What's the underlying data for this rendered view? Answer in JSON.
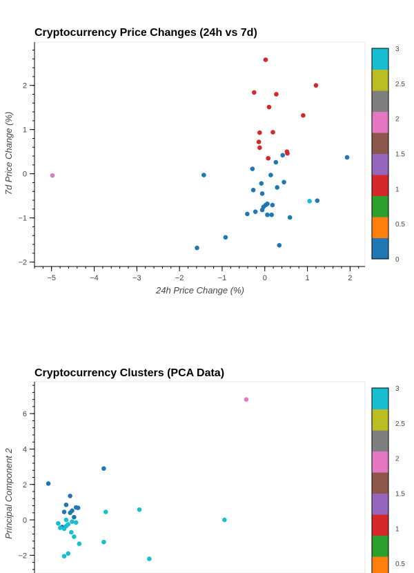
{
  "chart_data": [
    {
      "type": "scatter",
      "title": "Cryptocurrency Price Changes (24h vs 7d)",
      "xlabel": "24h Price Change (%)",
      "ylabel": "7d Price Change (%)",
      "xlim": [
        -5.4,
        2.35
      ],
      "ylim": [
        -2.1,
        2.98
      ],
      "xticks": [
        -5,
        -4,
        -3,
        -2,
        -1,
        0,
        1,
        2
      ],
      "yticks": [
        -2,
        -1,
        0,
        1,
        2
      ],
      "grid": false,
      "legend": "colorbar-right",
      "colorbar": {
        "ticks": [
          0,
          0.5,
          1,
          1.5,
          2,
          2.5,
          3
        ],
        "colors": [
          "#1f77b4",
          "#ff7f0e",
          "#2ca02c",
          "#d62728",
          "#9467bd",
          "#8c564b",
          "#e377c2",
          "#7f7f7f",
          "#bcbd22",
          "#17becf"
        ]
      },
      "points": [
        {
          "x": 0.02,
          "y": 2.58,
          "cluster": 1
        },
        {
          "x": 1.2,
          "y": 2.0,
          "cluster": 1
        },
        {
          "x": -0.25,
          "y": 1.84,
          "cluster": 1
        },
        {
          "x": 0.27,
          "y": 1.8,
          "cluster": 1
        },
        {
          "x": 0.1,
          "y": 1.51,
          "cluster": 1
        },
        {
          "x": 0.9,
          "y": 1.32,
          "cluster": 1
        },
        {
          "x": -0.12,
          "y": 0.93,
          "cluster": 1
        },
        {
          "x": 0.19,
          "y": 0.94,
          "cluster": 1
        },
        {
          "x": -0.14,
          "y": 0.72,
          "cluster": 1
        },
        {
          "x": -0.12,
          "y": 0.59,
          "cluster": 1
        },
        {
          "x": 0.52,
          "y": 0.5,
          "cluster": 1
        },
        {
          "x": 0.53,
          "y": 0.46,
          "cluster": 1
        },
        {
          "x": 0.08,
          "y": 0.35,
          "cluster": 1
        },
        {
          "x": -4.98,
          "y": -0.04,
          "cluster": 2
        },
        {
          "x": 1.05,
          "y": -0.62,
          "cluster": 3
        },
        {
          "x": 1.93,
          "y": 0.37,
          "cluster": 0
        },
        {
          "x": 0.42,
          "y": 0.42,
          "cluster": 0
        },
        {
          "x": 0.26,
          "y": 0.26,
          "cluster": 0
        },
        {
          "x": -0.29,
          "y": 0.11,
          "cluster": 0
        },
        {
          "x": -1.43,
          "y": -0.03,
          "cluster": 0
        },
        {
          "x": 0.14,
          "y": -0.03,
          "cluster": 0
        },
        {
          "x": 0.45,
          "y": -0.19,
          "cluster": 0
        },
        {
          "x": -0.08,
          "y": -0.22,
          "cluster": 0
        },
        {
          "x": 0.29,
          "y": -0.31,
          "cluster": 0
        },
        {
          "x": -0.27,
          "y": -0.37,
          "cluster": 0
        },
        {
          "x": -0.06,
          "y": -0.45,
          "cluster": 0
        },
        {
          "x": 1.23,
          "y": -0.61,
          "cluster": 0
        },
        {
          "x": 0.02,
          "y": -0.71,
          "cluster": 0
        },
        {
          "x": 0.06,
          "y": -0.68,
          "cluster": 0
        },
        {
          "x": 0.18,
          "y": -0.71,
          "cluster": 0
        },
        {
          "x": -0.03,
          "y": -0.75,
          "cluster": 0
        },
        {
          "x": -0.06,
          "y": -0.82,
          "cluster": 0
        },
        {
          "x": -0.22,
          "y": -0.86,
          "cluster": 0
        },
        {
          "x": -0.41,
          "y": -0.91,
          "cluster": 0
        },
        {
          "x": 0.06,
          "y": -0.93,
          "cluster": 0
        },
        {
          "x": 0.16,
          "y": -0.93,
          "cluster": 0
        },
        {
          "x": 0.59,
          "y": -0.99,
          "cluster": 0
        },
        {
          "x": -0.92,
          "y": -1.44,
          "cluster": 0
        },
        {
          "x": 0.34,
          "y": -1.62,
          "cluster": 0
        },
        {
          "x": -1.59,
          "y": -1.68,
          "cluster": 0
        }
      ]
    },
    {
      "type": "scatter",
      "title": "Cryptocurrency Clusters (PCA Data)",
      "xlabel": "",
      "ylabel": "Principal Component 2",
      "xlim": [
        -0.75,
        7.6
      ],
      "ylim": [
        -3.0,
        7.8
      ],
      "yticks": [
        -2,
        0,
        2,
        4,
        6
      ],
      "grid": false,
      "legend": "colorbar-right",
      "colorbar": {
        "ticks": [
          0.5,
          1,
          1.5,
          2,
          2.5,
          3
        ],
        "colors": [
          "#1f77b4",
          "#ff7f0e",
          "#2ca02c",
          "#d62728",
          "#9467bd",
          "#8c564b",
          "#e377c2",
          "#7f7f7f",
          "#bcbd22",
          "#17becf"
        ]
      },
      "points": [
        {
          "x": 4.6,
          "y": 6.8,
          "cluster": 2
        },
        {
          "x": -0.4,
          "y": 2.05,
          "cluster": 0
        },
        {
          "x": 1.0,
          "y": 2.9,
          "cluster": 0
        },
        {
          "x": 0.15,
          "y": 1.35,
          "cluster": 0
        },
        {
          "x": 0.05,
          "y": 0.85,
          "cluster": 0
        },
        {
          "x": 0.3,
          "y": 0.7,
          "cluster": 0
        },
        {
          "x": 0.35,
          "y": 0.68,
          "cluster": 0
        },
        {
          "x": 0.0,
          "y": 0.45,
          "cluster": 0
        },
        {
          "x": 0.2,
          "y": 0.52,
          "cluster": 0
        },
        {
          "x": 0.15,
          "y": 0.4,
          "cluster": 0
        },
        {
          "x": 0.25,
          "y": 0.15,
          "cluster": 0
        },
        {
          "x": -0.05,
          "y": -0.4,
          "cluster": 0
        },
        {
          "x": 0.05,
          "y": 0.0,
          "cluster": 3
        },
        {
          "x": 0.2,
          "y": -0.1,
          "cluster": 3
        },
        {
          "x": -0.15,
          "y": -0.2,
          "cluster": 3
        },
        {
          "x": 0.1,
          "y": -0.25,
          "cluster": 3
        },
        {
          "x": 0.3,
          "y": -0.15,
          "cluster": 3
        },
        {
          "x": -0.1,
          "y": -0.45,
          "cluster": 3
        },
        {
          "x": 0.0,
          "y": -0.5,
          "cluster": 3
        },
        {
          "x": 0.05,
          "y": -0.35,
          "cluster": 3
        },
        {
          "x": 0.18,
          "y": -0.7,
          "cluster": 3
        },
        {
          "x": 0.25,
          "y": -0.95,
          "cluster": 3
        },
        {
          "x": 0.38,
          "y": -1.35,
          "cluster": 3
        },
        {
          "x": 0.1,
          "y": -1.9,
          "cluster": 3
        },
        {
          "x": 0.0,
          "y": -2.05,
          "cluster": 3
        },
        {
          "x": 1.05,
          "y": 0.45,
          "cluster": 3
        },
        {
          "x": 1.9,
          "y": 0.58,
          "cluster": 3
        },
        {
          "x": 1.0,
          "y": -1.25,
          "cluster": 3
        },
        {
          "x": 2.15,
          "y": -2.2,
          "cluster": 3
        },
        {
          "x": 4.05,
          "y": 0.0,
          "cluster": 3
        }
      ]
    }
  ]
}
